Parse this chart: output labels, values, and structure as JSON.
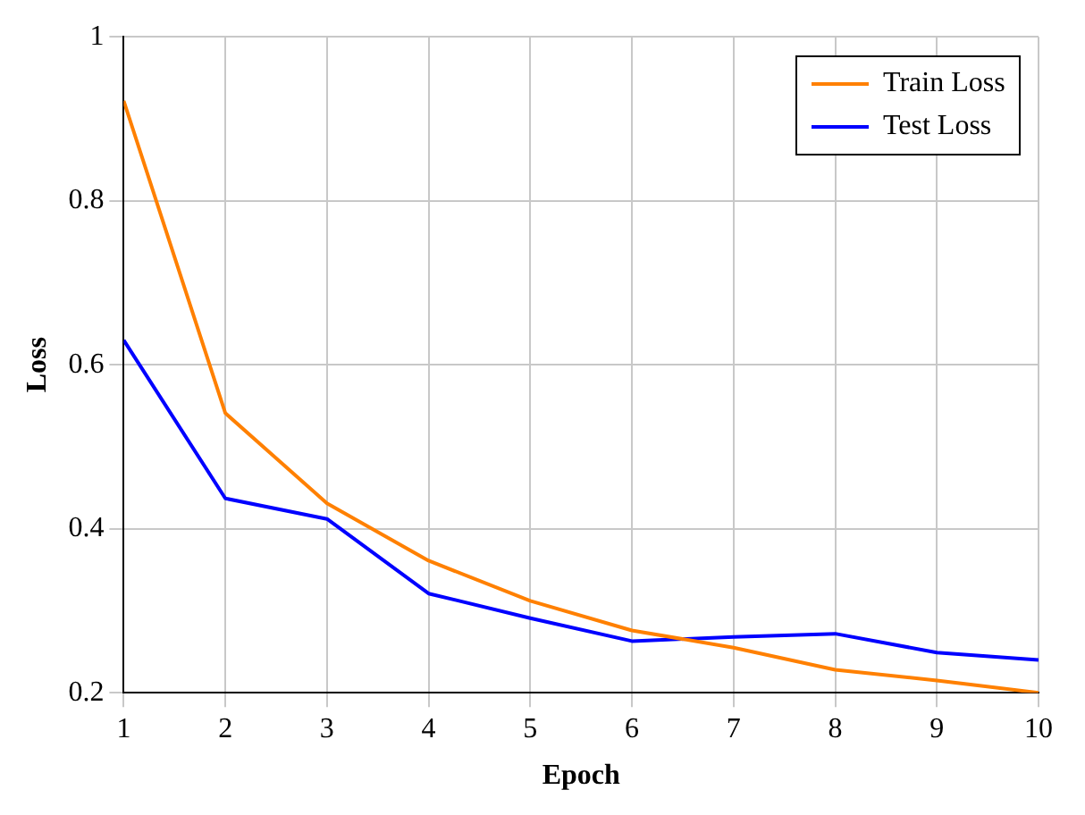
{
  "chart_data": {
    "type": "line",
    "xlabel": "Epoch",
    "ylabel": "Loss",
    "x": [
      1,
      2,
      3,
      4,
      5,
      6,
      7,
      8,
      9,
      10
    ],
    "series": [
      {
        "name": "Train Loss",
        "color": "#ff8000",
        "values": [
          0.922,
          0.541,
          0.431,
          0.361,
          0.312,
          0.276,
          0.255,
          0.228,
          0.215,
          0.2
        ]
      },
      {
        "name": "Test Loss",
        "color": "#0000ff",
        "values": [
          0.63,
          0.437,
          0.412,
          0.321,
          0.291,
          0.263,
          0.268,
          0.272,
          0.249,
          0.24
        ]
      }
    ],
    "xlim": [
      1,
      10
    ],
    "xticks": [
      1,
      2,
      3,
      4,
      5,
      6,
      7,
      8,
      9,
      10
    ],
    "ylim": [
      0.2,
      1
    ],
    "yticks": [
      0.2,
      0.4,
      0.6,
      0.8,
      1
    ],
    "grid": true,
    "legend": "top right",
    "marker": "none",
    "line_style": "solid"
  }
}
